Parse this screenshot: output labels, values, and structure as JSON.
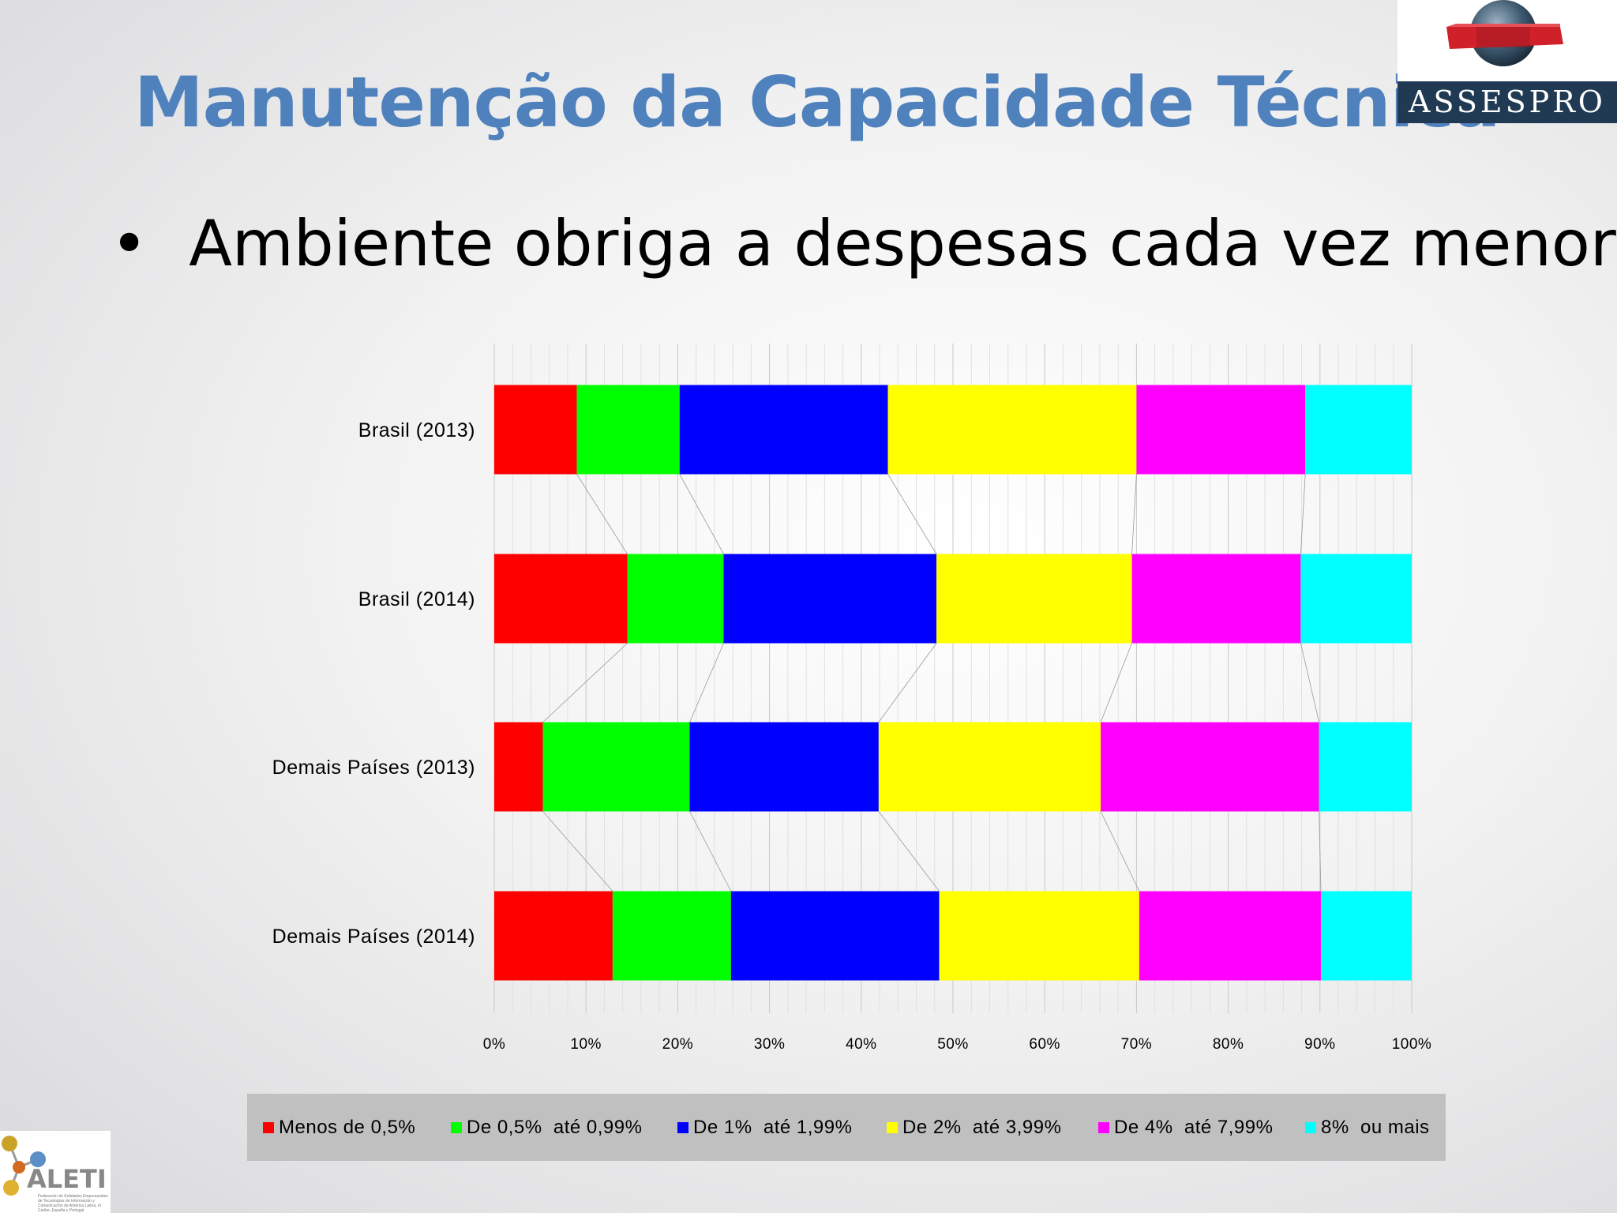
{
  "slide": {
    "title": "Manutenção da Capacidade Técnica",
    "bullet": "Ambiente obriga a despesas cada vez menores",
    "bullet_symbol": "•"
  },
  "logos": {
    "assespro": "ASSESPRO",
    "aleti": "ALETI",
    "aleti_tagline": "Federación de Entidades Empresariales de Tecnologías de Información y Comunicación de América Latina, el Caribe, España y Portugal"
  },
  "chart_data": {
    "type": "bar",
    "orientation": "horizontal",
    "stacked": "percent",
    "categories": [
      "Brasil (2013)",
      "Brasil (2014)",
      "Demais Países (2013)",
      "Demais Países (2014)"
    ],
    "series": [
      {
        "name": "Menos de 0,5%",
        "color": "#ff0000",
        "values": [
          9,
          14.5,
          5.3,
          12.9
        ]
      },
      {
        "name": "De 0,5%  até 0,99%",
        "color": "#00ff00",
        "values": [
          11.2,
          10.5,
          16,
          12.9
        ]
      },
      {
        "name": "De 1%  até 1,99%",
        "color": "#0000ff",
        "values": [
          22.7,
          23.2,
          20.6,
          22.7
        ]
      },
      {
        "name": "De 2%  até 3,99%",
        "color": "#ffff00",
        "values": [
          27.1,
          21.3,
          24.2,
          21.8
        ]
      },
      {
        "name": "De 4%  até 7,99%",
        "color": "#ff00ff",
        "values": [
          18.4,
          18.4,
          23.8,
          19.8
        ]
      },
      {
        "name": "8%  ou mais",
        "color": "#00ffff",
        "values": [
          11.6,
          12.1,
          10.1,
          9.9
        ]
      }
    ],
    "x_ticks": [
      "0%",
      "10%",
      "20%",
      "30%",
      "40%",
      "50%",
      "60%",
      "70%",
      "80%",
      "90%",
      "100%"
    ],
    "xlim": [
      0,
      100
    ],
    "grid": true,
    "series_lines": true,
    "legend_position": "bottom"
  }
}
